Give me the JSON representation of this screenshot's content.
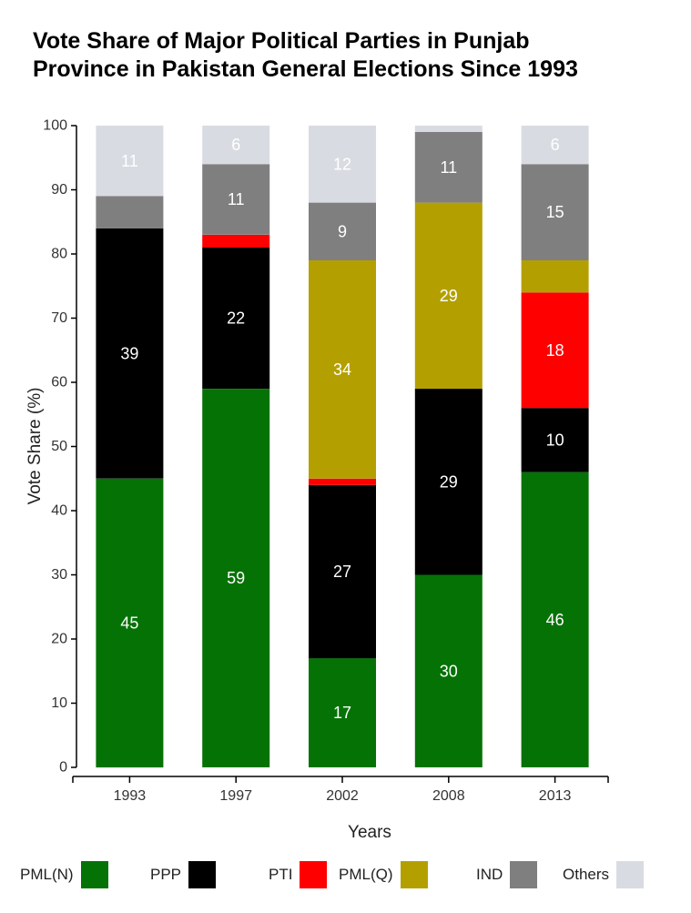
{
  "chart_data": {
    "type": "stacked-bar",
    "title_lines": [
      "Vote Share of Major Political Parties in Punjab",
      "Province in Pakistan General Elections Since 1993"
    ],
    "xlabel": "Years",
    "ylabel": "Vote Share (%)",
    "ylim": [
      0,
      100
    ],
    "yticks": [
      0,
      10,
      20,
      30,
      40,
      50,
      60,
      70,
      80,
      90,
      100
    ],
    "categories": [
      "1993",
      "1997",
      "2002",
      "2008",
      "2013"
    ],
    "series": [
      {
        "name": "PML(N)",
        "color": "#057205",
        "values": [
          45,
          59,
          17,
          30,
          46
        ],
        "labels": [
          "45",
          "59",
          "17",
          "30",
          "46"
        ]
      },
      {
        "name": "PPP",
        "color": "#000000",
        "values": [
          39,
          22,
          27,
          29,
          10
        ],
        "labels": [
          "39",
          "22",
          "27",
          "29",
          "10"
        ]
      },
      {
        "name": "PTI",
        "color": "#ff0000",
        "values": [
          0,
          2,
          1,
          0,
          18
        ],
        "labels": [
          null,
          null,
          null,
          null,
          "18"
        ]
      },
      {
        "name": "PML(Q)",
        "color": "#b3a000",
        "values": [
          0,
          0,
          34,
          29,
          5
        ],
        "labels": [
          null,
          null,
          "34",
          "29",
          null
        ]
      },
      {
        "name": "IND",
        "color": "#7f7f7f",
        "values": [
          5,
          11,
          9,
          11,
          15
        ],
        "labels": [
          null,
          "11",
          "9",
          "11",
          "15"
        ]
      },
      {
        "name": "Others",
        "color": "#d9dbe2",
        "values": [
          11,
          6,
          12,
          1,
          6
        ],
        "labels": [
          "11",
          "6",
          "12",
          null,
          "6"
        ]
      }
    ],
    "legend_position": "bottom"
  }
}
